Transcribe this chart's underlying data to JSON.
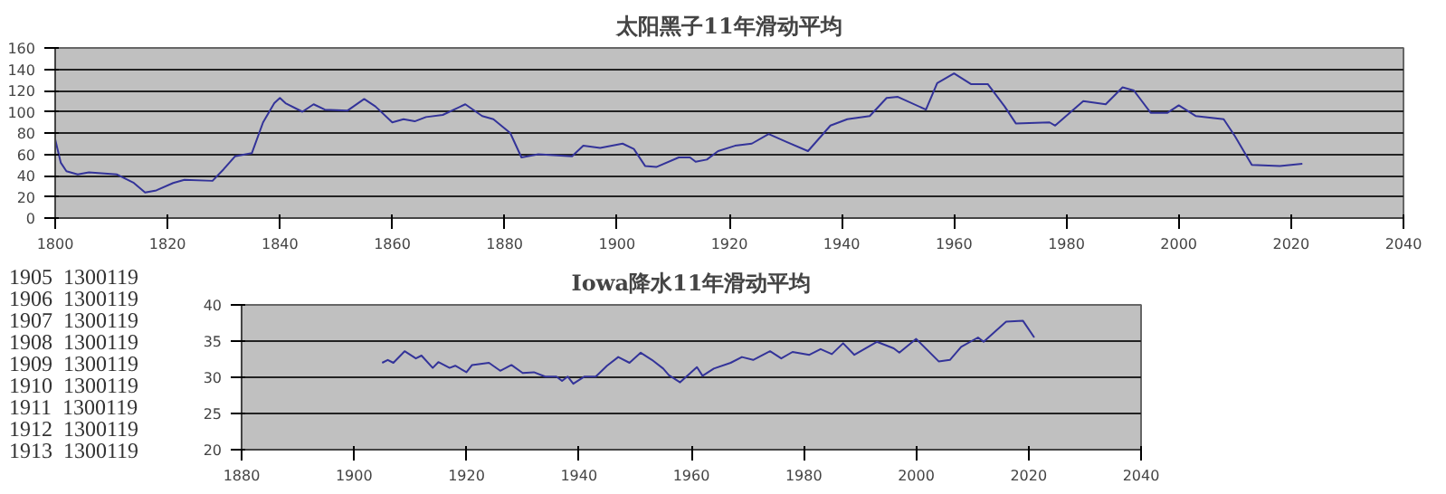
{
  "chart_data": [
    {
      "type": "line",
      "title": "太阳黑子11年滑动平均",
      "xlim": [
        1800,
        2040
      ],
      "xticks": [
        1800,
        1820,
        1840,
        1860,
        1880,
        1900,
        1920,
        1940,
        1960,
        1980,
        2000,
        2020,
        2040
      ],
      "ylim": [
        0,
        160
      ],
      "yticks": [
        0,
        20,
        40,
        60,
        80,
        100,
        120,
        140,
        160
      ],
      "grid": "y",
      "series": [
        {
          "color": "#333399",
          "x": [
            1800,
            1801,
            1802,
            1804,
            1806,
            1811,
            1814,
            1816,
            1818,
            1821,
            1823,
            1828,
            1830,
            1832,
            1835,
            1837,
            1839,
            1840,
            1841,
            1844,
            1846,
            1848,
            1852,
            1855,
            1857,
            1860,
            1862,
            1864,
            1866,
            1869,
            1873,
            1876,
            1878,
            1881,
            1883,
            1886,
            1892,
            1894,
            1897,
            1901,
            1903,
            1905,
            1907,
            1911,
            1913,
            1914,
            1916,
            1918,
            1921,
            1924,
            1927,
            1930,
            1934,
            1938,
            1941,
            1945,
            1948,
            1950,
            1955,
            1957,
            1960,
            1963,
            1966,
            1969,
            1971,
            1977,
            1978,
            1983,
            1987,
            1990,
            1992,
            1995,
            1998,
            2000,
            2003,
            2008,
            2010,
            2013,
            2018,
            2022
          ],
          "values": [
            74,
            52,
            44,
            41,
            43,
            41,
            33,
            24,
            26,
            33,
            36,
            35,
            46,
            58,
            61,
            90,
            108,
            113,
            108,
            100,
            107,
            102,
            101,
            112,
            105,
            90,
            93,
            91,
            95,
            97,
            107,
            96,
            93,
            80,
            57,
            60,
            58,
            68,
            66,
            70,
            65,
            49,
            48,
            57,
            57,
            53,
            55,
            63,
            68,
            70,
            79,
            72,
            63,
            87,
            93,
            96,
            113,
            114,
            102,
            127,
            136,
            126,
            126,
            105,
            89,
            90,
            87,
            110,
            107,
            123,
            120,
            99,
            99,
            106,
            96,
            93,
            77,
            50,
            49,
            51
          ]
        }
      ]
    },
    {
      "type": "line",
      "title": "Iowa降水11年滑动平均",
      "xlim": [
        1880,
        2040
      ],
      "xticks": [
        1880,
        1900,
        1920,
        1940,
        1960,
        1980,
        2000,
        2020,
        2040
      ],
      "ylim": [
        20,
        40
      ],
      "yticks": [
        20,
        25,
        30,
        35,
        40
      ],
      "grid": "y",
      "series": [
        {
          "color": "#333399",
          "x": [
            1905,
            1906,
            1907,
            1909,
            1911,
            1912,
            1914,
            1915,
            1917,
            1918,
            1920,
            1921,
            1924,
            1926,
            1928,
            1930,
            1932,
            1934,
            1936,
            1937,
            1938,
            1939,
            1941,
            1943,
            1945,
            1947,
            1949,
            1951,
            1953,
            1955,
            1956,
            1958,
            1961,
            1962,
            1964,
            1967,
            1969,
            1971,
            1974,
            1976,
            1978,
            1981,
            1983,
            1985,
            1987,
            1989,
            1993,
            1996,
            1997,
            2000,
            2004,
            2006,
            2008,
            2011,
            2012,
            2016,
            2019,
            2021
          ],
          "values": [
            32.0,
            32.4,
            32.0,
            33.6,
            32.6,
            33.0,
            31.3,
            32.1,
            31.3,
            31.6,
            30.7,
            31.7,
            32.0,
            30.9,
            31.7,
            30.6,
            30.7,
            30.1,
            30.1,
            29.5,
            30.1,
            29.1,
            30.1,
            30.1,
            31.6,
            32.8,
            32.0,
            33.4,
            32.4,
            31.2,
            30.3,
            29.3,
            31.4,
            30.2,
            31.2,
            32.0,
            32.8,
            32.4,
            33.6,
            32.6,
            33.5,
            33.1,
            33.9,
            33.2,
            34.7,
            33.1,
            34.9,
            34.0,
            33.4,
            35.3,
            32.2,
            32.4,
            34.2,
            35.5,
            34.9,
            37.7,
            37.8,
            35.5
          ]
        }
      ]
    },
    {
      "type": "other",
      "annotations": [
        "1905",
        "1300119",
        "1906",
        "1300119",
        "1907",
        "1300119",
        "1908",
        "1300119",
        "1909",
        "1300119",
        "1910",
        "1300119",
        "1911",
        "1300119",
        "1912",
        "1300119",
        "1913",
        "1300119"
      ]
    }
  ]
}
